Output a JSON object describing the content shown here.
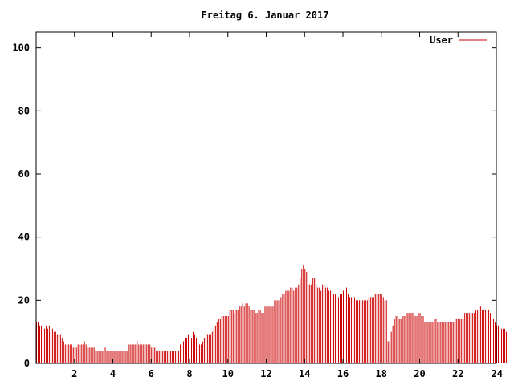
{
  "chart_data": {
    "type": "bar",
    "title": "Freitag 6. Januar 2017",
    "xlabel": "",
    "ylabel": "",
    "xlim": [
      0,
      24
    ],
    "ylim": [
      0,
      105
    ],
    "x_ticks": [
      "2",
      "4",
      "6",
      "8",
      "10",
      "12",
      "14",
      "16",
      "18",
      "20",
      "22",
      "24"
    ],
    "y_ticks": [
      "0",
      "20",
      "40",
      "60",
      "80",
      "100"
    ],
    "legend": {
      "position": "top-right",
      "label": "User"
    },
    "grid": false,
    "colors": {
      "series": "#cc0000",
      "axis": "#000000"
    },
    "series": [
      {
        "name": "User",
        "interval_minutes": 5,
        "values": [
          13,
          13,
          12,
          12,
          11,
          11,
          12,
          11,
          12,
          10,
          11,
          10,
          10,
          9,
          9,
          9,
          8,
          7,
          6,
          6,
          6,
          6,
          6,
          5,
          5,
          5,
          6,
          6,
          6,
          6,
          7,
          6,
          5,
          5,
          5,
          5,
          5,
          4,
          4,
          4,
          4,
          4,
          4,
          5,
          4,
          4,
          4,
          4,
          4,
          4,
          4,
          4,
          4,
          4,
          4,
          4,
          4,
          4,
          6,
          6,
          6,
          6,
          6,
          7,
          6,
          6,
          6,
          6,
          6,
          6,
          6,
          6,
          5,
          5,
          5,
          4,
          4,
          4,
          4,
          4,
          4,
          4,
          4,
          4,
          4,
          4,
          4,
          4,
          4,
          4,
          6,
          6,
          7,
          8,
          8,
          9,
          9,
          8,
          10,
          9,
          8,
          6,
          6,
          6,
          7,
          8,
          8,
          9,
          9,
          9,
          10,
          11,
          12,
          13,
          14,
          14,
          15,
          15,
          15,
          15,
          15,
          17,
          17,
          17,
          16,
          17,
          17,
          18,
          18,
          19,
          18,
          19,
          19,
          18,
          17,
          17,
          17,
          16,
          16,
          17,
          17,
          16,
          16,
          18,
          18,
          18,
          18,
          18,
          18,
          20,
          20,
          20,
          20,
          21,
          22,
          22,
          23,
          23,
          23,
          24,
          24,
          23,
          24,
          24,
          25,
          27,
          30,
          31,
          30,
          29,
          25,
          25,
          25,
          27,
          27,
          25,
          24,
          24,
          23,
          25,
          25,
          24,
          24,
          23,
          23,
          22,
          22,
          22,
          21,
          21,
          22,
          22,
          23,
          23,
          24,
          22,
          21,
          21,
          21,
          21,
          20,
          20,
          20,
          20,
          20,
          20,
          20,
          20,
          21,
          21,
          21,
          21,
          22,
          22,
          22,
          22,
          22,
          21,
          20,
          20,
          7,
          7,
          10,
          12,
          14,
          15,
          15,
          14,
          14,
          15,
          15,
          15,
          16,
          16,
          16,
          16,
          16,
          15,
          15,
          16,
          16,
          15,
          15,
          13,
          13,
          13,
          13,
          13,
          13,
          14,
          14,
          13,
          13,
          13,
          13,
          13,
          13,
          13,
          13,
          13,
          13,
          13,
          14,
          14,
          14,
          14,
          14,
          14,
          16,
          16,
          16,
          16,
          16,
          16,
          16,
          17,
          17,
          18,
          18,
          17,
          17,
          17,
          17,
          17,
          16,
          15,
          14,
          13,
          12,
          12,
          12,
          11,
          11,
          11,
          10
        ]
      }
    ]
  }
}
